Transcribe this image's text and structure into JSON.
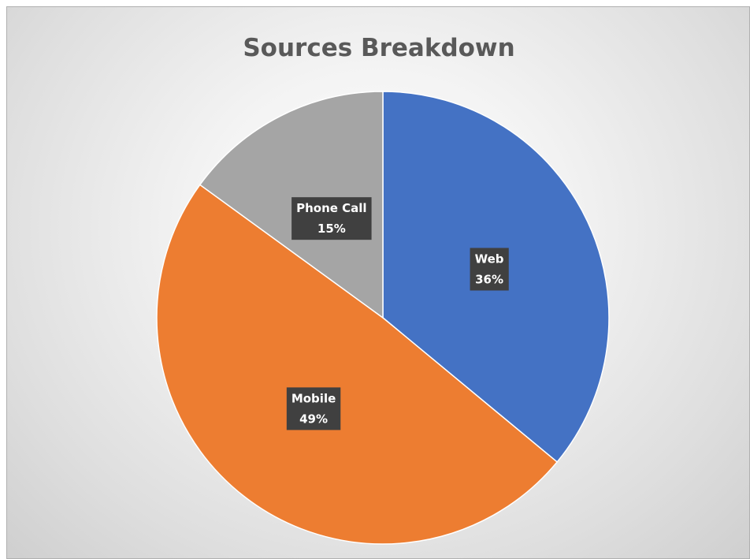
{
  "chart_data": {
    "type": "pie",
    "title": "Sources Breakdown",
    "slices": [
      {
        "label": "Web",
        "value": 36,
        "display": "36%",
        "color": "#4472C4"
      },
      {
        "label": "Mobile",
        "value": 49,
        "display": "49%",
        "color": "#ED7D31"
      },
      {
        "label": "Phone Call",
        "value": 15,
        "display": "15%",
        "color": "#A5A5A5"
      }
    ],
    "start_angle": "12 o'clock",
    "direction": "clockwise",
    "data_labels": "category and percentage, inside slices, dark box",
    "legend": "none"
  }
}
